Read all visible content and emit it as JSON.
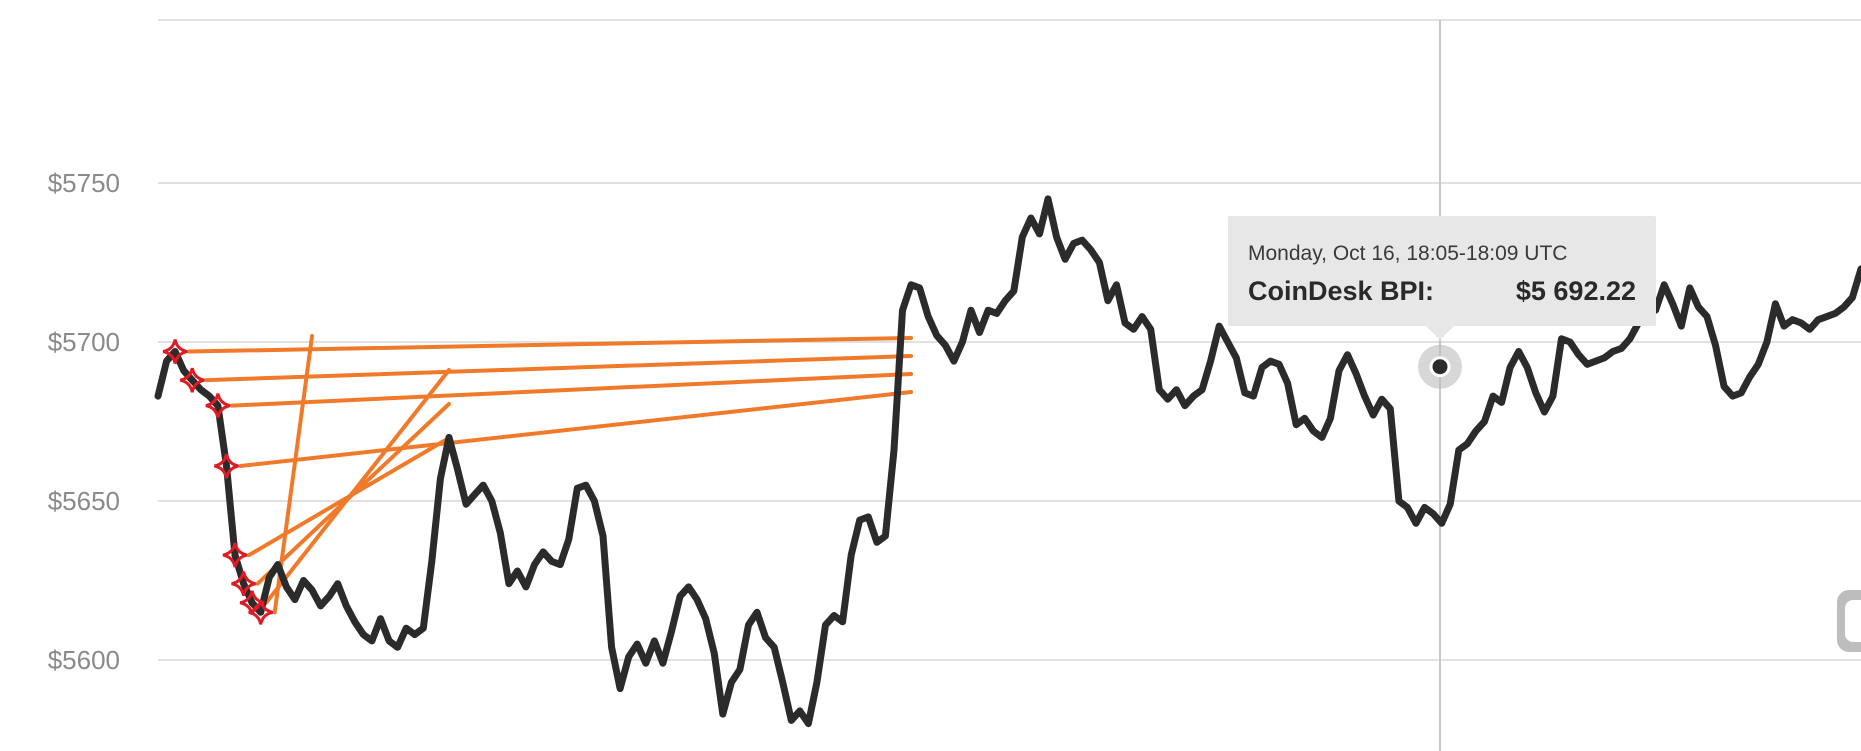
{
  "chart_data": {
    "type": "line",
    "title": "",
    "xlabel": "",
    "ylabel": "",
    "ylim": [
      5570,
      5800
    ],
    "yticks": [
      5600,
      5650,
      5700,
      5750
    ],
    "ytick_labels": [
      "$5600",
      "$5650",
      "$5700",
      "$5750"
    ],
    "grid": true,
    "series": [
      {
        "values": [
          5683,
          5694,
          5697,
          5691,
          5688,
          5685,
          5683,
          5680,
          5661,
          5633,
          5624,
          5618,
          5615,
          5626,
          5630,
          5623,
          5619,
          5625,
          5622,
          5617,
          5620,
          5624,
          5617,
          5612,
          5608,
          5606,
          5613,
          5606,
          5604,
          5610,
          5608,
          5610,
          5631,
          5657,
          5670,
          5660,
          5649,
          5652,
          5655,
          5650,
          5640,
          5624,
          5628,
          5623,
          5630,
          5634,
          5631,
          5630,
          5638,
          5654,
          5655,
          5650,
          5639,
          5604,
          5591,
          5601,
          5605,
          5599,
          5606,
          5599,
          5609,
          5620,
          5623,
          5619,
          5613,
          5602,
          5583,
          5593,
          5597,
          5611,
          5615,
          5607,
          5604,
          5593,
          5581,
          5584,
          5580,
          5593,
          5611,
          5614,
          5612,
          5633,
          5644,
          5645,
          5637,
          5639,
          5666,
          5710,
          5718,
          5717,
          5708,
          5702,
          5699,
          5694,
          5700,
          5710,
          5703,
          5710,
          5709,
          5713,
          5716,
          5733,
          5739,
          5734,
          5745,
          5733,
          5726,
          5731,
          5732,
          5729,
          5725,
          5713,
          5718,
          5706,
          5704,
          5708,
          5704,
          5685,
          5682,
          5685,
          5680,
          5683,
          5685,
          5694,
          5705,
          5700,
          5695,
          5684,
          5683,
          5692,
          5694,
          5693,
          5687,
          5674,
          5676,
          5672,
          5670,
          5676,
          5691,
          5696,
          5690,
          5683,
          5677,
          5682,
          5679,
          5650,
          5648,
          5643,
          5648,
          5646,
          5643,
          5649,
          5666,
          5668,
          5672,
          5675,
          5683,
          5681,
          5692,
          5697,
          5692,
          5684,
          5678,
          5683,
          5701,
          5700,
          5696,
          5693,
          5694,
          5695,
          5697,
          5698,
          5701,
          5706,
          5712,
          5710,
          5718,
          5712,
          5705,
          5717,
          5711,
          5708,
          5699,
          5686,
          5683,
          5684,
          5689,
          5693,
          5700,
          5712,
          5705,
          5707,
          5706,
          5704,
          5707,
          5708,
          5709,
          5711,
          5714,
          5723
        ]
      }
    ],
    "highlighted_point": {
      "value": 5692.22
    },
    "colors": {
      "line": "#2b2b2b",
      "annotation": "#f07a2a",
      "marker": "#e01b24",
      "tooltip_bg": "#e7e7e7"
    }
  },
  "tooltip": {
    "date": "Monday, Oct 16, 18:05-18:09 UTC",
    "label": "CoinDesk BPI:",
    "value": "$5 692.22"
  },
  "icons": {
    "marker": "red-star-marker-icon",
    "badge": "gray-rounded-badge-icon"
  }
}
